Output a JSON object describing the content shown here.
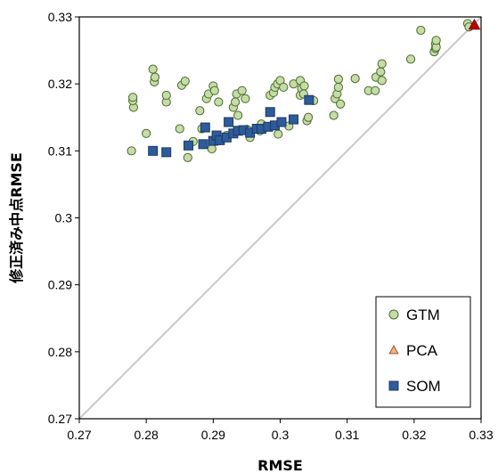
{
  "chart_data": {
    "type": "scatter",
    "xlabel": "RMSE",
    "ylabel": "修正済み中点RMSE",
    "xlim": [
      0.27,
      0.33
    ],
    "ylim": [
      0.27,
      0.33
    ],
    "x_ticks": [
      "0.27",
      "0.28",
      "0.29",
      "0.3",
      "0.31",
      "0.32",
      "0.33"
    ],
    "y_ticks": [
      "0.27",
      "0.28",
      "0.29",
      "0.3",
      "0.31",
      "0.32",
      "0.33"
    ],
    "grid": false,
    "diagonal_reference_line": true,
    "legend_position": "bottom-right",
    "series": [
      {
        "name": "GTM",
        "marker": "circle",
        "color": "#c6dca8",
        "stroke": "#4a6b2a",
        "points": [
          [
            0.2778,
            0.31
          ],
          [
            0.2781,
            0.3165
          ],
          [
            0.278,
            0.3175
          ],
          [
            0.278,
            0.318
          ],
          [
            0.28,
            0.3126
          ],
          [
            0.281,
            0.3222
          ],
          [
            0.2812,
            0.3203
          ],
          [
            0.2813,
            0.321
          ],
          [
            0.283,
            0.3173
          ],
          [
            0.283,
            0.3183
          ],
          [
            0.285,
            0.3133
          ],
          [
            0.2853,
            0.3198
          ],
          [
            0.2858,
            0.3204
          ],
          [
            0.2862,
            0.309
          ],
          [
            0.287,
            0.3114
          ],
          [
            0.288,
            0.316
          ],
          [
            0.2883,
            0.3133
          ],
          [
            0.289,
            0.3178
          ],
          [
            0.2893,
            0.3185
          ],
          [
            0.2898,
            0.3103
          ],
          [
            0.29,
            0.3197
          ],
          [
            0.2902,
            0.319
          ],
          [
            0.2908,
            0.3173
          ],
          [
            0.291,
            0.3115
          ],
          [
            0.292,
            0.3123
          ],
          [
            0.293,
            0.3165
          ],
          [
            0.2933,
            0.3173
          ],
          [
            0.2935,
            0.3185
          ],
          [
            0.2937,
            0.3153
          ],
          [
            0.2943,
            0.319
          ],
          [
            0.2948,
            0.3178
          ],
          [
            0.295,
            0.3132
          ],
          [
            0.2953,
            0.313
          ],
          [
            0.2955,
            0.312
          ],
          [
            0.297,
            0.313
          ],
          [
            0.2972,
            0.314
          ],
          [
            0.2978,
            0.3135
          ],
          [
            0.2985,
            0.3183
          ],
          [
            0.299,
            0.3187
          ],
          [
            0.2992,
            0.3195
          ],
          [
            0.2996,
            0.32
          ],
          [
            0.2997,
            0.3125
          ],
          [
            0.3,
            0.3205
          ],
          [
            0.3005,
            0.3195
          ],
          [
            0.3013,
            0.3137
          ],
          [
            0.302,
            0.32
          ],
          [
            0.303,
            0.3183
          ],
          [
            0.303,
            0.3205
          ],
          [
            0.3032,
            0.3193
          ],
          [
            0.3035,
            0.3185
          ],
          [
            0.3036,
            0.3197
          ],
          [
            0.304,
            0.3145
          ],
          [
            0.3042,
            0.315
          ],
          [
            0.305,
            0.3175
          ],
          [
            0.308,
            0.3153
          ],
          [
            0.3082,
            0.3178
          ],
          [
            0.3085,
            0.3185
          ],
          [
            0.3087,
            0.3195
          ],
          [
            0.3087,
            0.3207
          ],
          [
            0.309,
            0.317
          ],
          [
            0.3112,
            0.3208
          ],
          [
            0.3132,
            0.319
          ],
          [
            0.3142,
            0.319
          ],
          [
            0.3143,
            0.321
          ],
          [
            0.315,
            0.3218
          ],
          [
            0.3152,
            0.323
          ],
          [
            0.3152,
            0.3205
          ],
          [
            0.3195,
            0.3237
          ],
          [
            0.321,
            0.328
          ],
          [
            0.323,
            0.3248
          ],
          [
            0.3232,
            0.3253
          ],
          [
            0.3232,
            0.326
          ],
          [
            0.3233,
            0.3255
          ],
          [
            0.3233,
            0.3265
          ],
          [
            0.328,
            0.329
          ],
          [
            0.3282,
            0.3285
          ]
        ]
      },
      {
        "name": "PCA",
        "marker": "triangle",
        "color": "#c00000",
        "legend_color": "#f4b183",
        "stroke": "#7f0000",
        "points": [
          [
            0.329,
            0.3288
          ]
        ]
      },
      {
        "name": "SOM",
        "marker": "square",
        "color": "#2e5b9a",
        "stroke": "#1b3a66",
        "points": [
          [
            0.281,
            0.31
          ],
          [
            0.283,
            0.3098
          ],
          [
            0.2863,
            0.3108
          ],
          [
            0.2885,
            0.311
          ],
          [
            0.2888,
            0.3135
          ],
          [
            0.29,
            0.3115
          ],
          [
            0.2905,
            0.3123
          ],
          [
            0.291,
            0.3116
          ],
          [
            0.292,
            0.312
          ],
          [
            0.2923,
            0.3143
          ],
          [
            0.293,
            0.3126
          ],
          [
            0.2937,
            0.313
          ],
          [
            0.2945,
            0.3131
          ],
          [
            0.2955,
            0.3127
          ],
          [
            0.2965,
            0.3133
          ],
          [
            0.2972,
            0.3133
          ],
          [
            0.2982,
            0.3136
          ],
          [
            0.2985,
            0.3158
          ],
          [
            0.2992,
            0.3138
          ],
          [
            0.3002,
            0.3143
          ],
          [
            0.302,
            0.3147
          ],
          [
            0.3043,
            0.3176
          ]
        ]
      }
    ]
  }
}
